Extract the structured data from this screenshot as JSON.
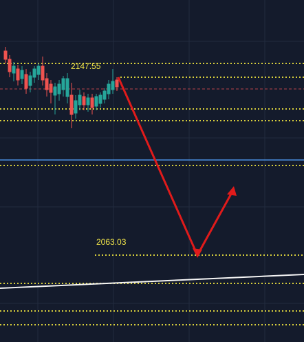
{
  "levels": [
    "2147.55",
    "2063.03"
  ]
}
